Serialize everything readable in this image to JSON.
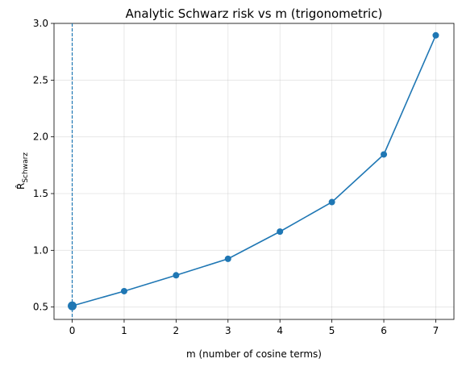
{
  "chart_data": {
    "type": "line",
    "title": "Analytic Schwarz risk vs m (trigonometric)",
    "xlabel": "m (number of cosine terms)",
    "ylabel": "R̂",
    "ylabel_subscript": "Schwarz",
    "x": [
      0,
      1,
      2,
      3,
      4,
      5,
      6,
      7
    ],
    "series": [
      {
        "values": [
          0.51,
          0.64,
          0.78,
          0.925,
          1.165,
          1.425,
          1.845,
          2.895
        ]
      }
    ],
    "highlight": {
      "x": 0,
      "y": 0.51
    },
    "vline": {
      "x": 0,
      "style": "dashed"
    },
    "xlim": [
      -0.35,
      7.35
    ],
    "ylim": [
      0.391,
      3.0
    ],
    "xticks": [
      0,
      1,
      2,
      3,
      4,
      5,
      6,
      7
    ],
    "yticks": [
      0.5,
      1.0,
      1.5,
      2.0,
      2.5,
      3.0
    ],
    "ytick_labels": [
      "0.5",
      "1.0",
      "1.5",
      "2.0",
      "2.5",
      "3.0"
    ],
    "grid": true,
    "color": "#1f77b4"
  }
}
